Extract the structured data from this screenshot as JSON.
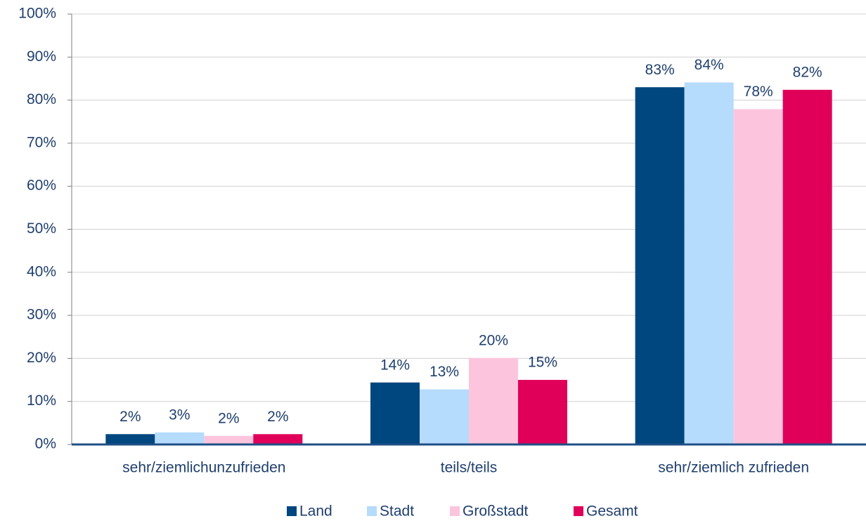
{
  "chart_data": {
    "type": "bar",
    "categories": [
      "sehr/ziemlichunzufrieden",
      "teils/teils",
      "sehr/ziemlich zufrieden"
    ],
    "series": [
      {
        "name": "Land",
        "color": "#00467f",
        "values": [
          2.4,
          14.4,
          83.0
        ],
        "value_labels": [
          "2%",
          "14%",
          "83%"
        ]
      },
      {
        "name": "Stadt",
        "color": "#b5dbfd",
        "values": [
          2.8,
          12.8,
          84.1
        ],
        "value_labels": [
          "3%",
          "13%",
          "84%"
        ]
      },
      {
        "name": "Großstadt",
        "color": "#fcc5dd",
        "values": [
          2.0,
          20.1,
          77.9
        ],
        "value_labels": [
          "2%",
          "20%",
          "78%"
        ]
      },
      {
        "name": "Gesamt",
        "color": "#e0005a",
        "values": [
          2.4,
          15.0,
          82.4
        ],
        "value_labels": [
          "2%",
          "15%",
          "82%"
        ]
      }
    ],
    "ylim": [
      0,
      100
    ],
    "yticks": [
      {
        "value": 0,
        "label": "0%"
      },
      {
        "value": 10,
        "label": "10%"
      },
      {
        "value": 20,
        "label": "20%"
      },
      {
        "value": 30,
        "label": "30%"
      },
      {
        "value": 40,
        "label": "40%"
      },
      {
        "value": 50,
        "label": "50%"
      },
      {
        "value": 60,
        "label": "60%"
      },
      {
        "value": 70,
        "label": "70%"
      },
      {
        "value": 80,
        "label": "80%"
      },
      {
        "value": 90,
        "label": "90%"
      },
      {
        "value": 100,
        "label": "100%"
      }
    ],
    "grid": true,
    "legend": "bottom"
  }
}
